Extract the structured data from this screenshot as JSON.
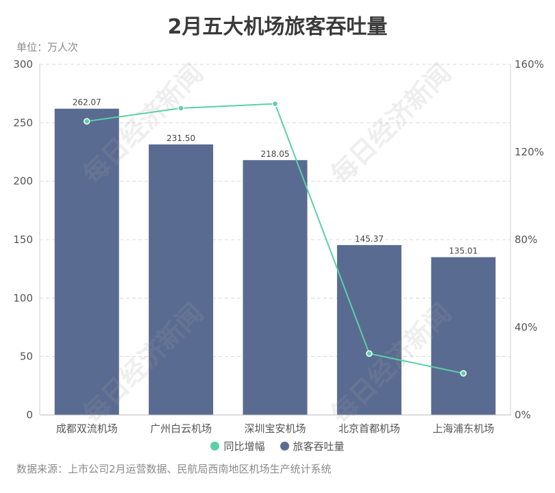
{
  "title": "2月五大机场旅客吞吐量",
  "unit_label": "单位：万人次",
  "source": "数据来源：上市公司2月运营数据、民航局西南地区机场生产统计系统",
  "watermark": "每日经济新闻",
  "legend": {
    "line_label": "同比增幅",
    "bar_label": "旅客吞吐量"
  },
  "colors": {
    "bar": "#5a6b92",
    "line": "#59d1a4",
    "grid": "#d8d8d8",
    "axis_text": "#555555",
    "title": "#3a3a3a"
  },
  "chart_data": {
    "type": "bar",
    "categories": [
      "成都双流机场",
      "广州白云机场",
      "深圳宝安机场",
      "北京首都机场",
      "上海浦东机场"
    ],
    "series": [
      {
        "name": "旅客吞吐量",
        "type": "bar",
        "axis": "left",
        "values": [
          262.07,
          231.5,
          218.05,
          145.37,
          135.01
        ],
        "labels": [
          "262.07",
          "231.50",
          "218.05",
          "145.37",
          "135.01"
        ]
      },
      {
        "name": "同比增幅",
        "type": "line",
        "axis": "right",
        "values": [
          134,
          140,
          142,
          28,
          19
        ]
      }
    ],
    "y_left": {
      "min": 0,
      "max": 300,
      "ticks": [
        "0",
        "50",
        "100",
        "150",
        "200",
        "250",
        "300"
      ]
    },
    "y_right": {
      "min": 0,
      "max": 160,
      "ticks": [
        "0%",
        "40%",
        "80%",
        "120%",
        "160%"
      ]
    },
    "grid": true,
    "legend_position": "bottom"
  }
}
